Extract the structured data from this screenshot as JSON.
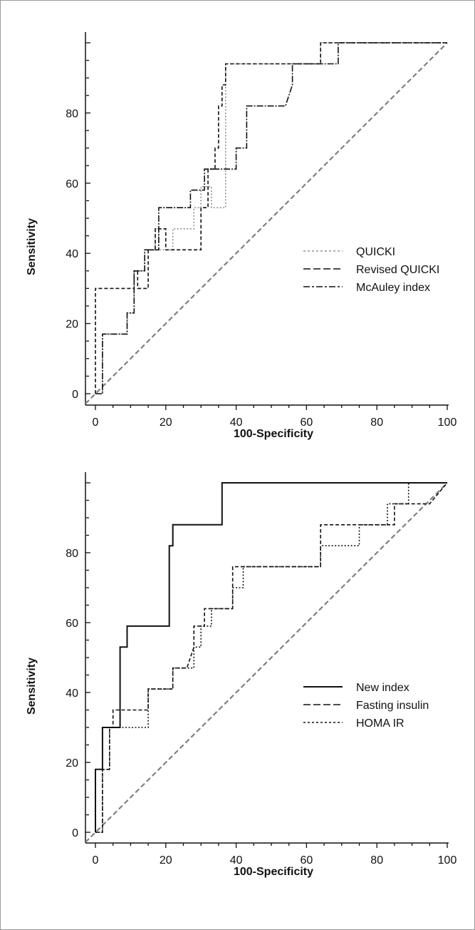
{
  "chart_data": [
    {
      "type": "line",
      "xlabel": "100-Specificity",
      "ylabel": "Sensitivity",
      "xlim": [
        0,
        100
      ],
      "ylim": [
        0,
        100
      ],
      "x_ticks": [
        "0",
        "20",
        "40",
        "60",
        "80",
        "100"
      ],
      "y_ticks": [
        "0",
        "20",
        "40",
        "60",
        "80"
      ],
      "legend_position": "center-right",
      "reference_line": {
        "x": [
          0,
          100
        ],
        "y": [
          0,
          100
        ],
        "color": "#808080",
        "style": "dashed"
      },
      "series": [
        {
          "name": "QUICKI",
          "style": "dotted",
          "color": "#909090",
          "x": [
            0,
            2,
            2,
            9,
            9,
            11,
            11,
            14,
            14,
            17,
            17,
            18,
            18,
            22,
            22,
            28,
            28,
            30,
            30,
            33,
            33,
            37,
            37,
            64,
            64,
            69,
            69,
            100
          ],
          "y": [
            0,
            0,
            17,
            17,
            23,
            23,
            35,
            35,
            41,
            41,
            47,
            47,
            41,
            41,
            47,
            47,
            53,
            53,
            59,
            59,
            53,
            53,
            94,
            94,
            100,
            100,
            100,
            100
          ]
        },
        {
          "name": "Revised QUICKI",
          "style": "dashed",
          "color": "#111111",
          "x": [
            0,
            0,
            11,
            11,
            12,
            12,
            15,
            15,
            17,
            17,
            20,
            20,
            30,
            30,
            32,
            32,
            34,
            34,
            35,
            35,
            36,
            36,
            37,
            37,
            64,
            64,
            100
          ],
          "y": [
            0,
            30,
            30,
            35,
            35,
            30,
            30,
            41,
            41,
            47,
            47,
            41,
            41,
            53,
            53,
            64,
            64,
            70,
            70,
            82,
            82,
            88,
            88,
            94,
            94,
            100,
            100
          ]
        },
        {
          "name": "McAuley index",
          "style": "dash-dot",
          "color": "#111111",
          "x": [
            0,
            2,
            2,
            9,
            9,
            11,
            11,
            14,
            14,
            18,
            18,
            27,
            27,
            31,
            31,
            40,
            40,
            43,
            43,
            54,
            56,
            56,
            69,
            69,
            100
          ],
          "y": [
            0,
            0,
            17,
            17,
            23,
            23,
            35,
            35,
            41,
            41,
            53,
            53,
            58,
            58,
            64,
            64,
            70,
            70,
            82,
            82,
            88,
            94,
            94,
            100,
            100
          ]
        }
      ]
    },
    {
      "type": "line",
      "xlabel": "100-Specificity",
      "ylabel": "Sensitivity",
      "xlim": [
        0,
        100
      ],
      "ylim": [
        0,
        100
      ],
      "x_ticks": [
        "0",
        "20",
        "40",
        "60",
        "80",
        "100"
      ],
      "y_ticks": [
        "0",
        "20",
        "40",
        "60",
        "80"
      ],
      "legend_position": "center-right",
      "reference_line": {
        "x": [
          0,
          100
        ],
        "y": [
          0,
          100
        ],
        "color": "#808080",
        "style": "dashed"
      },
      "series": [
        {
          "name": "New index",
          "style": "solid",
          "color": "#111111",
          "x": [
            0,
            0,
            2,
            2,
            7,
            7,
            9,
            9,
            21,
            21,
            22,
            22,
            36,
            36,
            100
          ],
          "y": [
            0,
            18,
            18,
            30,
            30,
            53,
            53,
            59,
            59,
            82,
            82,
            88,
            88,
            100,
            100
          ]
        },
        {
          "name": "Fasting insulin",
          "style": "dashed",
          "color": "#111111",
          "x": [
            0,
            2,
            2,
            4,
            4,
            5,
            5,
            7,
            7,
            15,
            15,
            22,
            22,
            26,
            28,
            28,
            31,
            31,
            39,
            39,
            41,
            41,
            64,
            64,
            75,
            75,
            85,
            85,
            95,
            100
          ],
          "y": [
            0,
            0,
            18,
            18,
            30,
            30,
            35,
            35,
            35,
            35,
            41,
            41,
            47,
            47,
            53,
            59,
            59,
            64,
            64,
            76,
            76,
            76,
            76,
            88,
            88,
            88,
            88,
            94,
            94,
            100
          ]
        },
        {
          "name": "HOMA IR",
          "style": "dotted",
          "color": "#111111",
          "x": [
            0,
            2,
            2,
            4,
            4,
            6,
            6,
            9,
            9,
            15,
            15,
            22,
            22,
            28,
            28,
            30,
            30,
            33,
            33,
            39,
            39,
            42,
            42,
            64,
            64,
            75,
            75,
            83,
            83,
            89,
            89,
            100
          ],
          "y": [
            0,
            0,
            18,
            18,
            30,
            30,
            30,
            30,
            30,
            30,
            41,
            41,
            47,
            47,
            53,
            53,
            59,
            59,
            64,
            64,
            70,
            70,
            76,
            76,
            82,
            82,
            88,
            88,
            94,
            94,
            100,
            100
          ]
        }
      ]
    }
  ]
}
